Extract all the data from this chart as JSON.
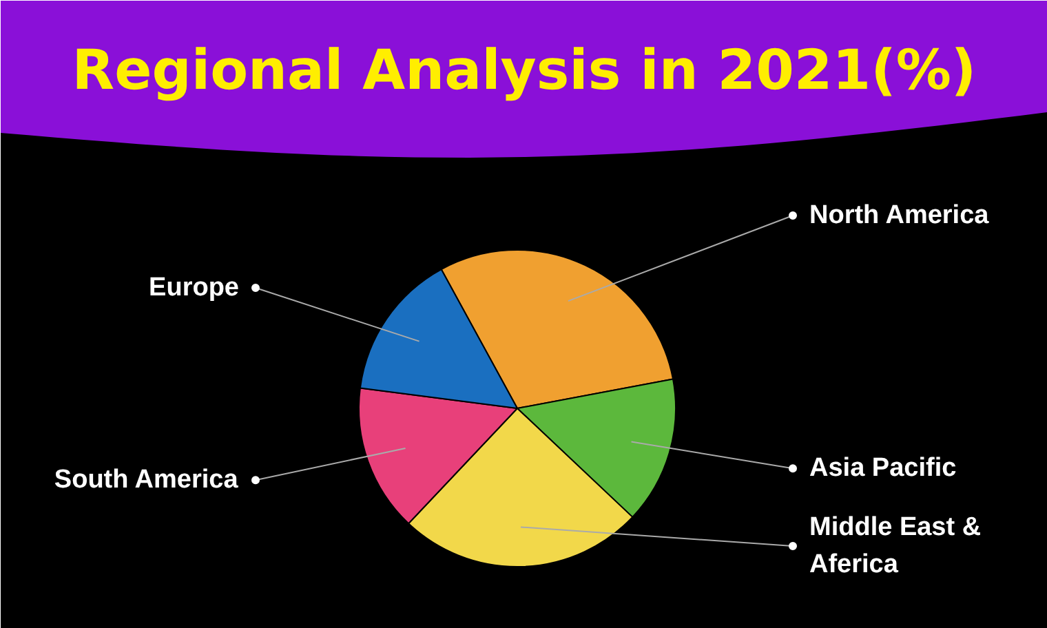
{
  "chart_data": {
    "type": "pie",
    "title": "Regional Analysis in 2021(%)",
    "categories": [
      "North America",
      "Asia Pacific",
      "Middle East &\nAferica",
      "South America",
      "Europe"
    ],
    "values": [
      30,
      15,
      25,
      15,
      15
    ],
    "colors": [
      "#f0a030",
      "#5cb83c",
      "#f2d84a",
      "#e8407a",
      "#1a6fc0"
    ]
  }
}
